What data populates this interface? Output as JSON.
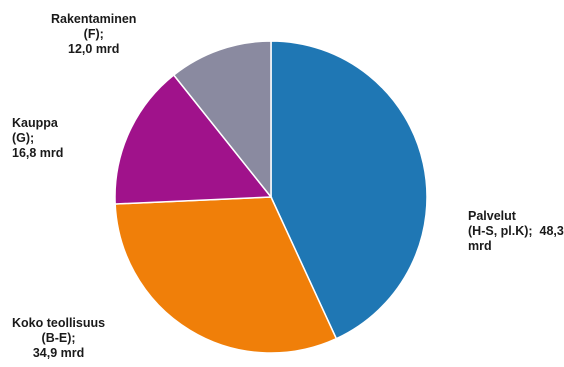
{
  "chart_data": {
    "type": "pie",
    "unit": "mrd",
    "slices": [
      {
        "name": "Palvelut",
        "code": "(H-S, pl.K);",
        "value": 48.3,
        "value_label": "48,3",
        "unit_label": "mrd",
        "color": "#1f77b4"
      },
      {
        "name": "Koko teollisuus",
        "code": "(B-E);",
        "value": 34.9,
        "value_label": "34,9 mrd",
        "color": "#f07f09"
      },
      {
        "name": "Kauppa",
        "code": "(G);",
        "value": 16.8,
        "value_label": "16,8 mrd",
        "color": "#a0128b"
      },
      {
        "name": "Rakentaminen",
        "code": "(F);",
        "value": 12.0,
        "value_label": "12,0 mrd",
        "color": "#8a8aa0"
      }
    ],
    "start_angle": "12 o'clock",
    "direction": "clockwise"
  }
}
